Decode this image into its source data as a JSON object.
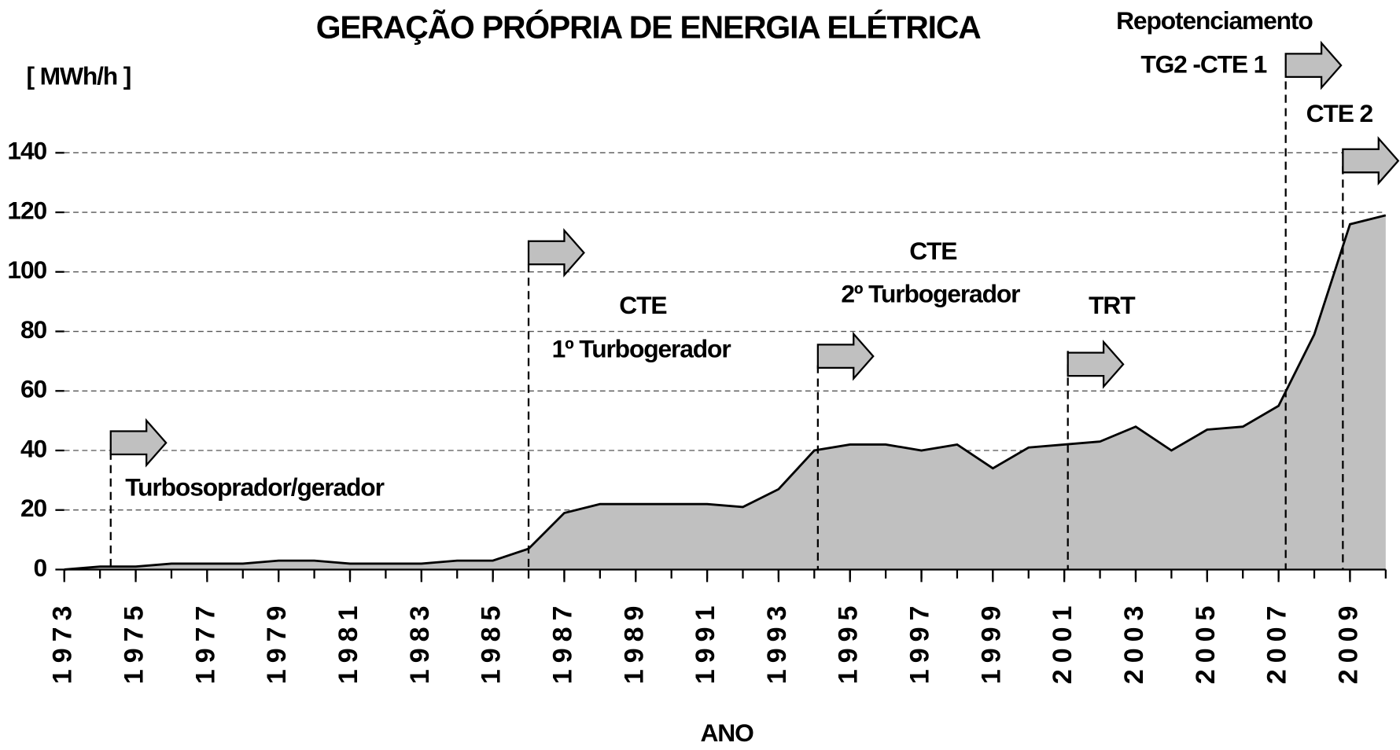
{
  "chart_data": {
    "type": "area",
    "title": "GERAÇÃO PRÓPRIA DE ENERGIA ELÉTRICA",
    "y_label": "[ MWh/h ]",
    "x_label": "ANO",
    "x": [
      1973,
      1974,
      1975,
      1976,
      1977,
      1978,
      1979,
      1980,
      1981,
      1982,
      1983,
      1984,
      1985,
      1986,
      1987,
      1988,
      1989,
      1990,
      1991,
      1992,
      1993,
      1994,
      1995,
      1996,
      1997,
      1998,
      1999,
      2000,
      2001,
      2002,
      2003,
      2004,
      2005,
      2006,
      2007,
      2008,
      2009,
      2010
    ],
    "values": [
      0,
      1,
      1,
      2,
      2,
      2,
      3,
      3,
      2,
      2,
      2,
      3,
      3,
      7,
      19,
      22,
      22,
      22,
      22,
      21,
      27,
      40,
      42,
      42,
      40,
      42,
      34,
      41,
      42,
      43,
      48,
      40,
      47,
      48,
      55,
      79,
      116,
      119
    ],
    "color": "#c0c0c0",
    "xlim": [
      1973,
      2010
    ],
    "xticks": [
      1973,
      1975,
      1977,
      1979,
      1981,
      1983,
      1985,
      1987,
      1989,
      1991,
      1993,
      1995,
      1997,
      1999,
      2001,
      2003,
      2005,
      2007,
      2009
    ],
    "ylim": [
      0,
      140
    ],
    "yticks": [
      0,
      20,
      40,
      60,
      80,
      100,
      120,
      140
    ],
    "grid": true,
    "annotations": [
      {
        "x": 1974.3,
        "lines": [
          "Turbosoprador/gerador"
        ]
      },
      {
        "x": 1986.0,
        "lines": [
          "CTE",
          "1º Turbogerador"
        ]
      },
      {
        "x": 1994.1,
        "lines": [
          "CTE",
          "2º Turbogerador"
        ]
      },
      {
        "x": 2001.1,
        "lines": [
          "TRT"
        ]
      },
      {
        "x": 2007.2,
        "lines": [
          "Repotenciamento",
          "TG2 -CTE 1"
        ]
      },
      {
        "x": 2008.8,
        "lines": [
          "CTE 2"
        ]
      }
    ]
  }
}
